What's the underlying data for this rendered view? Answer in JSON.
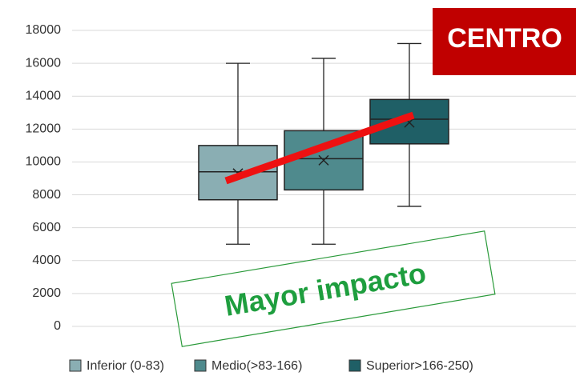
{
  "chart_data": {
    "type": "box",
    "series": [
      {
        "name": "Inferior (0-83)",
        "color": "#8aaeb3",
        "min": 5000,
        "q1": 7700,
        "median": 9400,
        "q3": 11000,
        "max": 16000,
        "mean": 9300
      },
      {
        "name": "Medio(>83-166)",
        "color": "#4f8a8d",
        "min": 5000,
        "q1": 8300,
        "median": 10200,
        "q3": 11900,
        "max": 16300,
        "mean": 10100
      },
      {
        "name": "Superior>166-250)",
        "color": "#1f5f66",
        "min": 7300,
        "q1": 11100,
        "median": 12600,
        "q3": 13800,
        "max": 17200,
        "mean": 12400
      }
    ],
    "ylim": [
      0,
      18000
    ],
    "yticks": [
      0,
      2000,
      4000,
      6000,
      8000,
      10000,
      12000,
      14000,
      16000,
      18000
    ],
    "grid": true,
    "legend": "bottom",
    "annotations": [
      "CENTRO",
      "Mayor impacto"
    ]
  }
}
